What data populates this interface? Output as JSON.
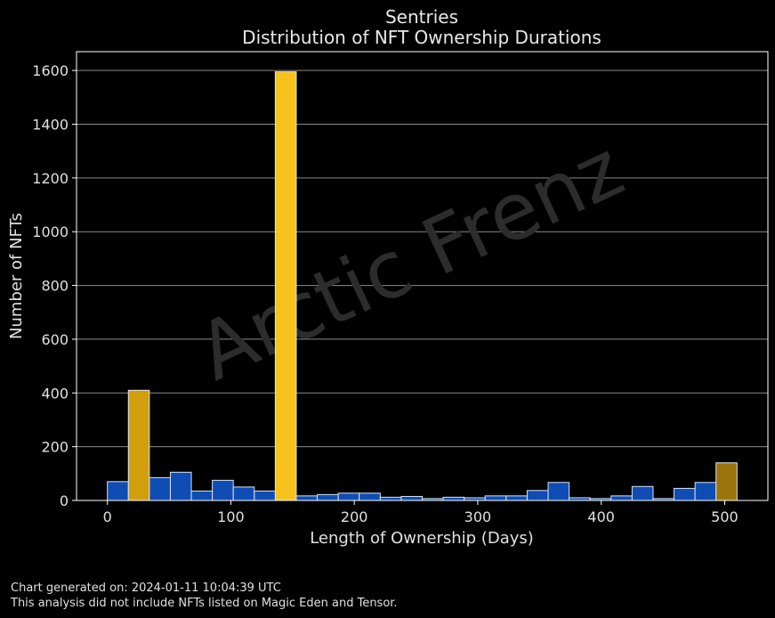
{
  "chart_data": {
    "type": "bar",
    "title": "Sentries",
    "subtitle": "Distribution of NFT Ownership Durations",
    "xlabel": "Length of Ownership (Days)",
    "ylabel": "Number of NFTs",
    "xlim": [
      -25,
      535
    ],
    "ylim": [
      0,
      1670
    ],
    "xticks": [
      0,
      100,
      200,
      300,
      400,
      500
    ],
    "yticks": [
      0,
      200,
      400,
      600,
      800,
      1000,
      1200,
      1400,
      1600
    ],
    "bin_width": 17,
    "grid": "horizontal",
    "watermark": "Arctic Frenz",
    "bins": [
      {
        "start": 0,
        "value": 70,
        "color": "#0f4db5"
      },
      {
        "start": 17,
        "value": 410,
        "color": "#d29e0c"
      },
      {
        "start": 34,
        "value": 85,
        "color": "#0f4db5"
      },
      {
        "start": 51,
        "value": 105,
        "color": "#0f4db5"
      },
      {
        "start": 68,
        "value": 35,
        "color": "#0f4db5"
      },
      {
        "start": 85,
        "value": 75,
        "color": "#0f4db5"
      },
      {
        "start": 102,
        "value": 50,
        "color": "#0f4db5"
      },
      {
        "start": 119,
        "value": 35,
        "color": "#0f4db5"
      },
      {
        "start": 136,
        "value": 1595,
        "color": "#f7c21c"
      },
      {
        "start": 153,
        "value": 17,
        "color": "#0f4db5"
      },
      {
        "start": 170,
        "value": 22,
        "color": "#0f4db5"
      },
      {
        "start": 187,
        "value": 27,
        "color": "#0f4db5"
      },
      {
        "start": 204,
        "value": 27,
        "color": "#0f4db5"
      },
      {
        "start": 221,
        "value": 12,
        "color": "#0f4db5"
      },
      {
        "start": 238,
        "value": 15,
        "color": "#0f4db5"
      },
      {
        "start": 255,
        "value": 7,
        "color": "#0f4db5"
      },
      {
        "start": 272,
        "value": 12,
        "color": "#0f4db5"
      },
      {
        "start": 289,
        "value": 10,
        "color": "#0f4db5"
      },
      {
        "start": 306,
        "value": 17,
        "color": "#0f4db5"
      },
      {
        "start": 323,
        "value": 17,
        "color": "#0f4db5"
      },
      {
        "start": 340,
        "value": 37,
        "color": "#0f4db5"
      },
      {
        "start": 357,
        "value": 67,
        "color": "#0f4db5"
      },
      {
        "start": 374,
        "value": 10,
        "color": "#0f4db5"
      },
      {
        "start": 391,
        "value": 7,
        "color": "#0f4db5"
      },
      {
        "start": 408,
        "value": 17,
        "color": "#0f4db5"
      },
      {
        "start": 425,
        "value": 52,
        "color": "#0f4db5"
      },
      {
        "start": 442,
        "value": 7,
        "color": "#0f4db5"
      },
      {
        "start": 459,
        "value": 45,
        "color": "#0f4db5"
      },
      {
        "start": 476,
        "value": 67,
        "color": "#0f4db5"
      },
      {
        "start": 493,
        "value": 140,
        "color": "#9b750b"
      }
    ]
  },
  "footer": {
    "generated": "Chart generated on: 2024-01-11 10:04:39 UTC",
    "note": "This analysis did not include NFTs listed on Magic Eden and Tensor."
  }
}
